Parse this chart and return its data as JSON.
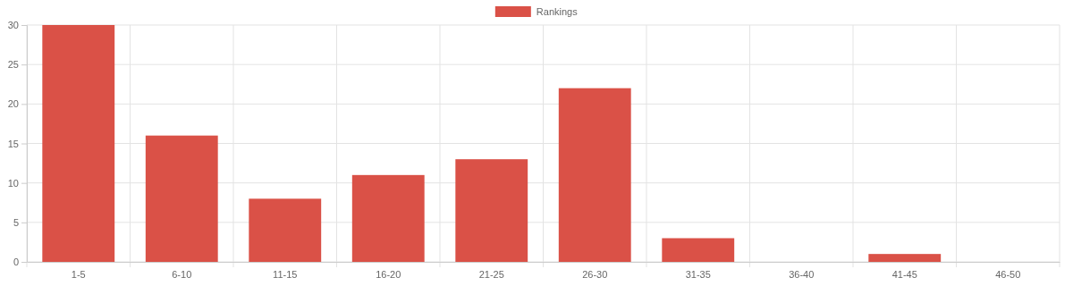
{
  "chart_data": {
    "type": "bar",
    "categories": [
      "1-5",
      "6-10",
      "11-15",
      "16-20",
      "21-25",
      "26-30",
      "31-35",
      "36-40",
      "41-45",
      "46-50"
    ],
    "series": [
      {
        "name": "Rankings",
        "color": "#da5147",
        "values": [
          30,
          16,
          8,
          11,
          13,
          22,
          3,
          0,
          1,
          0
        ]
      }
    ],
    "ylim": [
      0,
      30
    ],
    "yticks": [
      0,
      5,
      10,
      15,
      20,
      25,
      30
    ],
    "grid": true,
    "legend": "top"
  }
}
